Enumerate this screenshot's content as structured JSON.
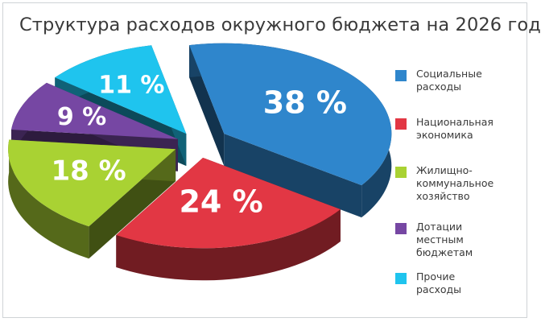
{
  "chart_data": {
    "type": "pie",
    "title": "Структура расходов окружного бюджета на 2026 год",
    "categories": [
      "Социальные расходы",
      "Национальная экономика",
      "Жилищно-коммунальное хозяйство",
      "Дотации местным бюджетам",
      "Прочие расходы"
    ],
    "values": [
      38,
      24,
      18,
      9,
      11
    ],
    "value_labels": [
      "38 %",
      "24 %",
      "18 %",
      "9 %",
      "11 %"
    ],
    "legend": {
      "placement": "right",
      "items": [
        {
          "lines": [
            "Социальные",
            "расходы"
          ],
          "color": "#2f86cc"
        },
        {
          "lines": [
            "Национальная",
            "экономика"
          ],
          "color": "#e23744"
        },
        {
          "lines": [
            "Жилищно-",
            "коммунальное",
            "хозяйство"
          ],
          "color": "#a9d233"
        },
        {
          "lines": [
            "Дотации",
            "местным",
            "бюджетам"
          ],
          "color": "#7647a3"
        },
        {
          "lines": [
            "Прочие",
            "расходы"
          ],
          "color": "#1fc4ee"
        }
      ]
    },
    "style": "3d-exploded-pie"
  }
}
